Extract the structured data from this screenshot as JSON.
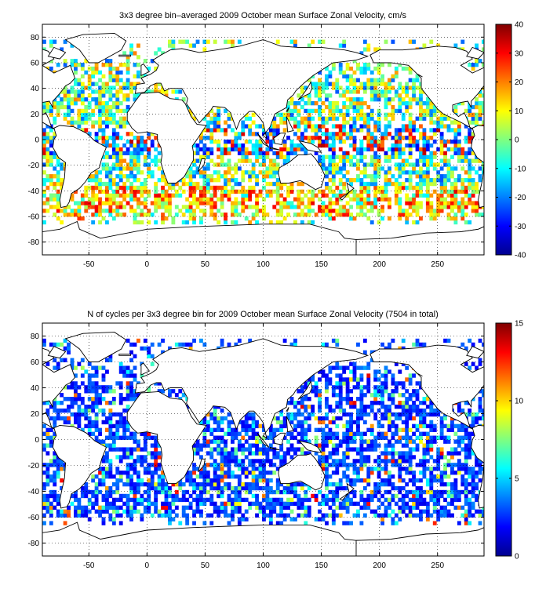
{
  "chart_data": [
    {
      "type": "heatmap",
      "title": "3x3 degree bin–averaged 2009 October mean Surface Zonal Velocity, cm/s",
      "xlim": [
        -90,
        290
      ],
      "ylim": [
        -90,
        90
      ],
      "x_ticks": [
        -50,
        0,
        50,
        100,
        150,
        200,
        250
      ],
      "y_ticks": [
        80,
        60,
        40,
        20,
        0,
        -20,
        -40,
        -60,
        -80
      ],
      "grid": true,
      "bin_size_deg": 3,
      "colorbar": {
        "min": -40,
        "max": 40,
        "ticks": [
          40,
          30,
          20,
          10,
          0,
          -10,
          -20,
          -30,
          -40
        ],
        "colormap": "jet"
      }
    },
    {
      "type": "heatmap",
      "title": "N of cycles per 3x3 degree bin for 2009 October mean Surface Zonal Velocity (7504 in total)",
      "xlim": [
        -90,
        290
      ],
      "ylim": [
        -90,
        90
      ],
      "x_ticks": [
        -50,
        0,
        50,
        100,
        150,
        200,
        250
      ],
      "y_ticks": [
        80,
        60,
        40,
        20,
        0,
        -20,
        -40,
        -60,
        -80
      ],
      "grid": true,
      "bin_size_deg": 3,
      "total_cycles": 7504,
      "colorbar": {
        "min": 0,
        "max": 15,
        "ticks": [
          15,
          10,
          5,
          0
        ],
        "colormap": "jet"
      }
    }
  ]
}
